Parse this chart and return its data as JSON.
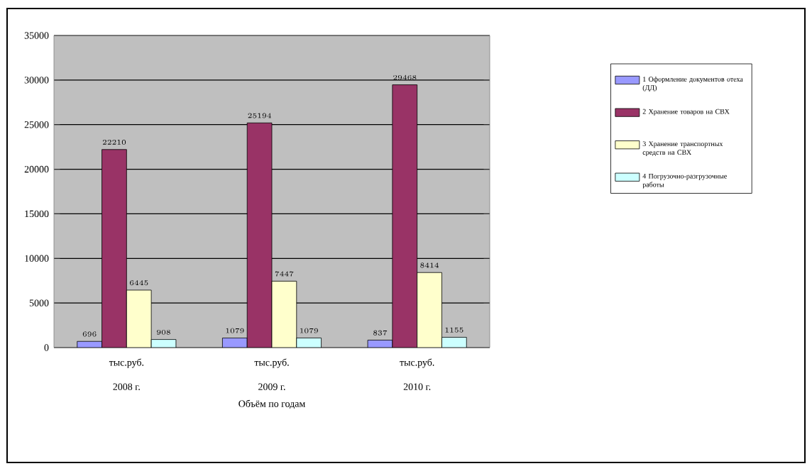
{
  "chart_data": {
    "type": "bar",
    "xlabel": "Объём по годам",
    "categories": [
      "2008 г.",
      "2009 г.",
      "2010 г."
    ],
    "annotations": [
      "тыс.руб.",
      "тыс.руб.",
      "тыс.руб."
    ],
    "series": [
      {
        "name": "1 Оформление документов отеха (ДД)",
        "color": "#9999ff",
        "values": [
          696,
          1079,
          837
        ]
      },
      {
        "name": "2 Хранение товаров на СВХ",
        "color": "#993366",
        "values": [
          22210,
          25194,
          29468
        ]
      },
      {
        "name": "3 Хранение транспортных средств на СВХ",
        "color": "#ffffcc",
        "values": [
          6445,
          7447,
          8414
        ]
      },
      {
        "name": "4 Погрузочно-разгрузочные работы",
        "color": "#ccffff",
        "values": [
          908,
          1079,
          1155
        ]
      }
    ],
    "ylim": [
      0,
      35000
    ],
    "yticks": [
      0,
      5000,
      10000,
      15000,
      20000,
      25000,
      30000,
      35000
    ],
    "data_labels": true,
    "grid": "y",
    "legend": "right"
  }
}
